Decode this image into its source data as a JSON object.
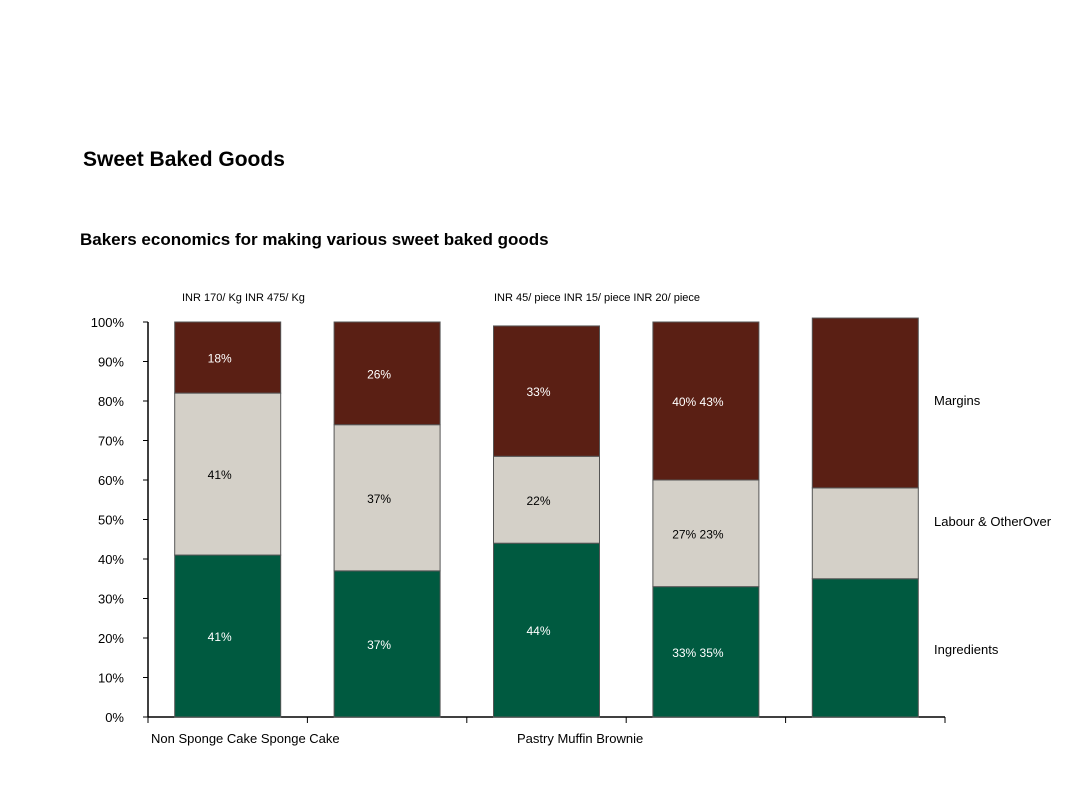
{
  "page": {
    "title": "Sweet  Baked Goods",
    "subtitle": "Bakers economics for making various sweet baked goods"
  },
  "chart_data": {
    "type": "bar",
    "stacked": true,
    "percent": true,
    "title": "Bakers economics for making various sweet baked goods",
    "price_labels": [
      "INR 170/ Kg INR 475/ Kg",
      "INR 45/ piece INR 15/ piece INR 20/ piece"
    ],
    "category_labels": [
      "Non Sponge Cake Sponge Cake",
      "Pastry Muffin Brownie"
    ],
    "categories": [
      "Non Sponge Cake",
      "Sponge Cake",
      "Pastry",
      "Muffin",
      "Brownie"
    ],
    "yticks": [
      "0%",
      "10%",
      "20%",
      "30%",
      "40%",
      "50%",
      "60%",
      "70%",
      "80%",
      "90%",
      "100%"
    ],
    "ylim": [
      0,
      100
    ],
    "grid": false,
    "legend_placement": "right",
    "series": [
      {
        "name": "Ingredients",
        "color": "#005a40",
        "label_color": "#ffffff",
        "values": [
          41,
          37,
          44,
          33,
          35
        ],
        "data_labels": [
          "41%",
          "37%",
          "44%",
          "33% 35%",
          ""
        ]
      },
      {
        "name": "Labour & OtherOver",
        "color": "#d4d0c8",
        "label_color": "#000000",
        "values": [
          41,
          37,
          22,
          27,
          23
        ],
        "data_labels": [
          "41%",
          "37%",
          "22%",
          "27% 23%",
          ""
        ]
      },
      {
        "name": "Margins",
        "color": "#5a1f14",
        "label_color": "#ffffff",
        "values": [
          18,
          26,
          33,
          40,
          43
        ],
        "data_labels": [
          "18%",
          "26%",
          "33%",
          "40% 43%",
          ""
        ]
      }
    ]
  }
}
